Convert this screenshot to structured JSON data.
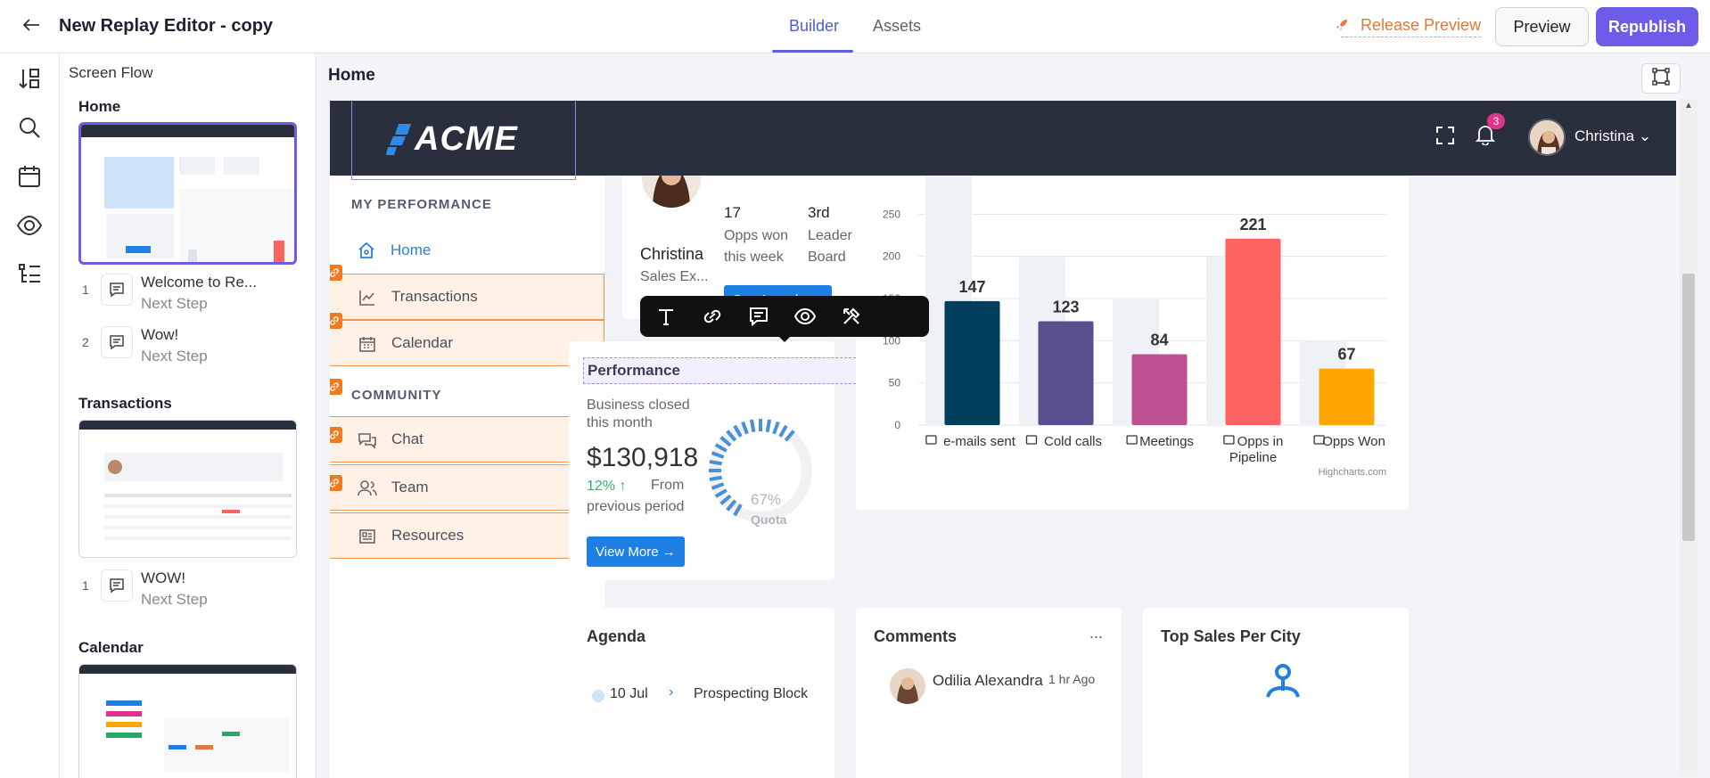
{
  "topbar": {
    "title": "New Replay Editor - copy",
    "tabs": [
      "Builder",
      "Assets"
    ],
    "release_preview": "Release Preview",
    "preview_label": "Preview",
    "republish_label": "Republish"
  },
  "flow": {
    "title": "Screen Flow",
    "sections": [
      {
        "name": "Home",
        "steps": [
          {
            "num": "1",
            "title": "Welcome to Re...",
            "sub": "Next Step"
          },
          {
            "num": "2",
            "title": "Wow!",
            "sub": "Next Step"
          }
        ]
      },
      {
        "name": "Transactions",
        "steps": [
          {
            "num": "1",
            "title": "WOW!",
            "sub": "Next Step"
          }
        ]
      },
      {
        "name": "Calendar",
        "steps": []
      }
    ]
  },
  "canvas": {
    "title": "Home"
  },
  "app": {
    "logo": "ACME",
    "notification_count": "3",
    "user_name": "Christina",
    "sidebar": {
      "heading_performance": "MY PERFORMANCE",
      "heading_community": "COMMUNITY",
      "items": [
        "Home",
        "Transactions",
        "Calendar",
        "Chat",
        "Team",
        "Resources"
      ]
    },
    "profile": {
      "name": "Christina",
      "role": "Sales Ex...",
      "opps_value": "17",
      "opps_label_1": "Opps won",
      "opps_label_2": "this week",
      "rank_value": "3rd",
      "rank_label_1": "Leader",
      "rank_label_2": "Board",
      "agenda_button": "See Agenda"
    },
    "performance": {
      "title": "Performance",
      "desc_1": "Business closed",
      "desc_2": "this month",
      "amount": "$130,918",
      "change": "12%",
      "change_arrow": "↑",
      "change_text_1": "From",
      "change_text_2": "previous period",
      "view_more": "View More",
      "gauge_value": "67%",
      "gauge_label": "Quota",
      "gauge_fraction": 0.67
    },
    "agenda": {
      "title": "Agenda",
      "date": "10 Jul",
      "event": "Prospecting Block"
    },
    "comments": {
      "title": "Comments",
      "more": "...",
      "author": "Odilia Alexandra",
      "time": "1 hr Ago"
    },
    "top_sales": {
      "title": "Top Sales Per City"
    }
  },
  "chart_data": {
    "type": "bar",
    "categories": [
      "e-mails sent",
      "Cold calls",
      "Meetings",
      "Opps in Pipeline",
      "Opps Won"
    ],
    "category_icons": [
      "envelope-icon",
      "phone-icon",
      "calendar-check-icon",
      "pulse-icon",
      "money-icon"
    ],
    "values": [
      147,
      123,
      84,
      221,
      67
    ],
    "background_values": [
      300,
      200,
      150,
      200,
      100
    ],
    "colors": [
      "#003f5c",
      "#58508d",
      "#bc5090",
      "#ff6361",
      "#ffa600"
    ],
    "yticks": [
      0,
      50,
      100,
      150,
      200,
      250,
      300
    ],
    "ylim": [
      0,
      300
    ],
    "credit": "Highcharts.com",
    "grid": true
  }
}
